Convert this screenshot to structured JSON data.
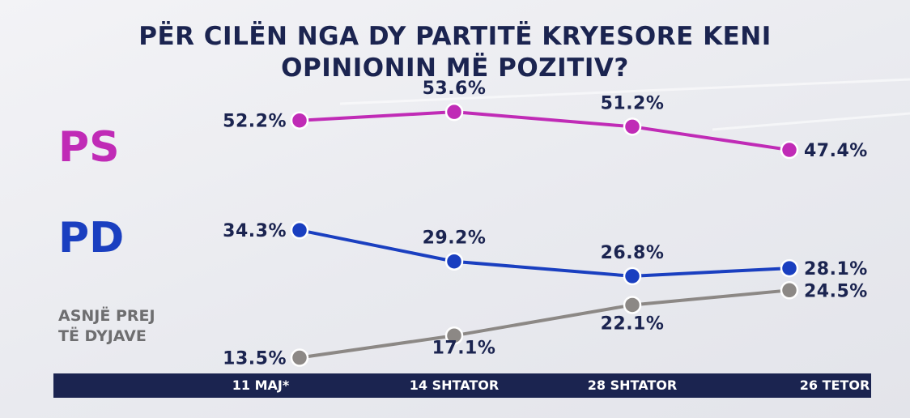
{
  "title": {
    "line1": "PËR CILËN NGA DY PARTITË KRYESORE KENI",
    "line2": "OPINIONIN MË POZITIV?"
  },
  "parties": {
    "ps": "PS",
    "pd": "PD",
    "none_line1": "ASNJË PREJ",
    "none_line2": "TË DYJAVE"
  },
  "chart_data": {
    "type": "line",
    "title": "PËR CILËN NGA DY PARTITË KRYESORE KENI OPINIONIN MË POZITIV?",
    "x": [
      "11 MAJ*",
      "14 SHTATOR",
      "28 SHTATOR",
      "26 TETOR"
    ],
    "unit": "%",
    "ylim": [
      10,
      56
    ],
    "grid": false,
    "legend": "left",
    "series": [
      {
        "name": "PS",
        "color": "#c02bb6",
        "values": [
          52.2,
          53.6,
          51.2,
          47.4
        ],
        "labels": [
          "52.2%",
          "53.6%",
          "51.2%",
          "47.4%"
        ]
      },
      {
        "name": "PD",
        "color": "#1a3fc0",
        "values": [
          34.3,
          29.2,
          26.8,
          28.1
        ],
        "labels": [
          "34.3%",
          "29.2%",
          "26.8%",
          "28.1%"
        ]
      },
      {
        "name": "ASNJË PREJ TË DYJAVE",
        "color": "#8c8885",
        "values": [
          13.5,
          17.1,
          22.1,
          24.5
        ],
        "labels": [
          "13.5%",
          "17.1%",
          "22.1%",
          "24.5%"
        ]
      }
    ]
  }
}
